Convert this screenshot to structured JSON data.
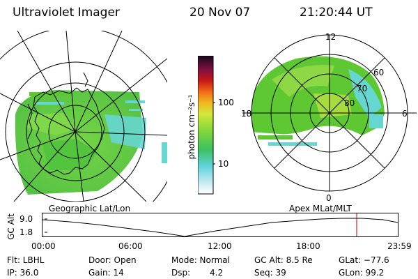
{
  "header": {
    "title": "Ultraviolet Imager",
    "date": "20 Nov 07",
    "time": "21:20:44 UT"
  },
  "colorbar": {
    "unit_label": "photon cm⁻²s⁻¹",
    "ticks": [
      "100",
      "10"
    ]
  },
  "left_map": {
    "caption": "Geographic Lat/Lon"
  },
  "right_map": {
    "caption": "Apex MLat/MLT",
    "mlt_labels": {
      "top": "12",
      "bottom": "0",
      "left": "18",
      "right": "6"
    },
    "lat_labels": [
      "60",
      "70",
      "80"
    ]
  },
  "altitude_plot": {
    "ylabel": "GC Alt",
    "yticks": [
      "9.0",
      "1.8"
    ],
    "xticks": [
      "00:00",
      "06:00",
      "12:00",
      "18:00",
      "23:59"
    ],
    "marker_color": "#c00000"
  },
  "info": {
    "flt": "Flt: LBHL",
    "door": "Door: Open",
    "mode": "Mode: Normal",
    "gc_alt": "GC Alt: 8.5 Re",
    "glat": "GLat: −77.6",
    "ip": "IP: 36.0",
    "gain": "Gain: 14",
    "dsp_label": "Dsp:",
    "dsp_value": "4.2",
    "seq": "Seq: 39",
    "glon": "GLon:  99.2"
  },
  "colors": {
    "aurora_green": "#5ec832",
    "aurora_cyan": "#66d6d0",
    "aurora_lime": "#a8dc3c"
  }
}
